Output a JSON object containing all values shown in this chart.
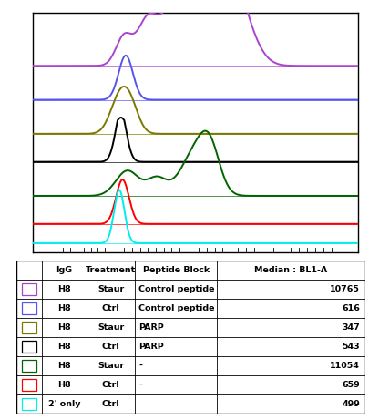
{
  "curves": [
    {
      "label": "H8 Staur Control peptide",
      "color": "#AA44CC",
      "shape": "bimodal_purple",
      "baseline_y": 6.0
    },
    {
      "label": "H8 Ctrl Control peptide",
      "color": "#5555EE",
      "shape": "single_blue",
      "baseline_y": 4.85
    },
    {
      "label": "H8 Staur PARP",
      "color": "#7A7A00",
      "shape": "single_olive",
      "baseline_y": 3.7
    },
    {
      "label": "H8 Ctrl PARP",
      "color": "#000000",
      "shape": "single_black",
      "baseline_y": 2.75
    },
    {
      "label": "H8 Staur -",
      "color": "#006400",
      "shape": "bimodal_green",
      "baseline_y": 1.6
    },
    {
      "label": "H8 Ctrl -",
      "color": "#FF0000",
      "shape": "single_red",
      "baseline_y": 0.65
    },
    {
      "label": "2 only Ctrl",
      "color": "#00EEEE",
      "shape": "single_cyan",
      "baseline_y": 0.0
    }
  ],
  "table_rows": [
    {
      "swatch_color": "#AA44CC",
      "IgG": "H8",
      "Treatment": "Staur",
      "Peptide_Block": "Control peptide",
      "Median": "10765"
    },
    {
      "swatch_color": "#5555EE",
      "IgG": "H8",
      "Treatment": "Ctrl",
      "Peptide_Block": "Control peptide",
      "Median": "616"
    },
    {
      "swatch_color": "#7A7A00",
      "IgG": "H8",
      "Treatment": "Staur",
      "Peptide_Block": "PARP",
      "Median": "347"
    },
    {
      "swatch_color": "#000000",
      "IgG": "H8",
      "Treatment": "Ctrl",
      "Peptide_Block": "PARP",
      "Median": "543"
    },
    {
      "swatch_color": "#006400",
      "IgG": "H8",
      "Treatment": "Staur",
      "Peptide_Block": "-",
      "Median": "11054"
    },
    {
      "swatch_color": "#FF0000",
      "IgG": "H8",
      "Treatment": "Ctrl",
      "Peptide_Block": "-",
      "Median": "659"
    },
    {
      "swatch_color": "#00EEEE",
      "IgG": "2' only",
      "Treatment": "Ctrl",
      "Peptide_Block": "",
      "Median": "499"
    }
  ]
}
